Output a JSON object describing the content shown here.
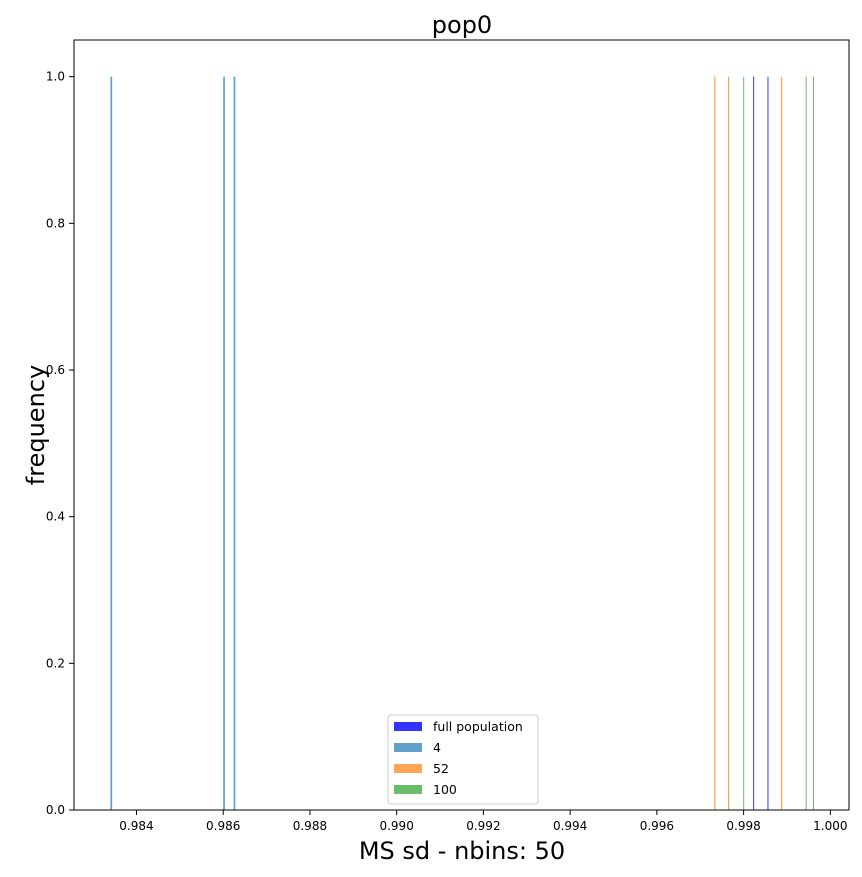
{
  "chart_data": {
    "type": "bar",
    "title": "pop0",
    "xlabel": "MS sd - nbins: 50",
    "ylabel": "frequency",
    "xlim": [
      0.98256,
      1.00043
    ],
    "ylim": [
      0,
      1.05
    ],
    "x_ticks": [
      "0.984",
      "0.986",
      "0.988",
      "0.990",
      "0.992",
      "0.994",
      "0.996",
      "0.998",
      "1.000"
    ],
    "x_tick_values": [
      0.984,
      0.986,
      0.988,
      0.99,
      0.992,
      0.994,
      0.996,
      0.998,
      1.0
    ],
    "y_ticks": [
      "0.0",
      "0.2",
      "0.4",
      "0.6",
      "0.8",
      "1.0"
    ],
    "y_tick_values": [
      0.0,
      0.2,
      0.4,
      0.6,
      0.8,
      1.0
    ],
    "grid": false,
    "legend_position": "bottom-center",
    "series": [
      {
        "name": "full population",
        "color": "#0000ff",
        "bin_width": 7e-06,
        "x": [
          0.99822,
          0.99855
        ],
        "values": [
          1,
          1
        ]
      },
      {
        "name": "4",
        "color": "#1f77b4",
        "bin_width": 4e-05,
        "x": [
          0.9834,
          0.986,
          0.98624
        ],
        "values": [
          1,
          1,
          1
        ]
      },
      {
        "name": "52",
        "color": "#ff7f0e",
        "bin_width": 3e-05,
        "x": [
          0.99732,
          0.99764,
          0.99886
        ],
        "values": [
          1,
          1,
          1
        ]
      },
      {
        "name": "100",
        "color": "#2ca02c",
        "bin_width": 2e-05,
        "x": [
          0.99799,
          0.99943,
          0.9996
        ],
        "values": [
          1,
          1,
          1
        ]
      }
    ]
  }
}
